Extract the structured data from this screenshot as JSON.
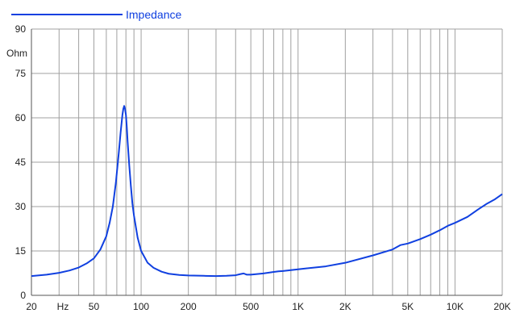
{
  "chart_data": {
    "type": "line",
    "xscale": "log",
    "xlim": [
      20,
      20000
    ],
    "ylim": [
      0,
      90
    ],
    "ylabel": "Ohm",
    "xunit_label": "Hz",
    "grid": true,
    "legend": "top-left",
    "x_ticks": [
      {
        "value": 20,
        "label": "20"
      },
      {
        "value": 50,
        "label": "50"
      },
      {
        "value": 100,
        "label": "100"
      },
      {
        "value": 200,
        "label": "200"
      },
      {
        "value": 500,
        "label": "500"
      },
      {
        "value": 1000,
        "label": "1K"
      },
      {
        "value": 2000,
        "label": "2K"
      },
      {
        "value": 5000,
        "label": "5K"
      },
      {
        "value": 10000,
        "label": "10K"
      },
      {
        "value": 20000,
        "label": "20K"
      }
    ],
    "y_ticks": [
      0,
      15,
      30,
      45,
      60,
      75,
      90
    ],
    "minor_x_gridlines": [
      30,
      40,
      60,
      70,
      80,
      90,
      300,
      400,
      600,
      700,
      800,
      900,
      3000,
      4000,
      6000,
      7000,
      8000,
      9000
    ],
    "series": [
      {
        "name": "Impedance",
        "color": "#1040e0",
        "x": [
          20,
          25,
          30,
          35,
          40,
          45,
          50,
          55,
          60,
          63,
          66,
          69,
          72,
          74,
          76,
          77,
          78,
          79,
          80,
          81,
          82,
          84,
          86,
          88,
          90,
          95,
          100,
          110,
          120,
          135,
          150,
          175,
          200,
          250,
          300,
          350,
          400,
          430,
          450,
          470,
          500,
          600,
          700,
          750,
          800,
          1000,
          1500,
          2000,
          3000,
          4000,
          4500,
          5000,
          6000,
          7000,
          8000,
          9000,
          10000,
          12000,
          14000,
          16000,
          18000,
          20000
        ],
        "values": [
          6.5,
          7.0,
          7.6,
          8.4,
          9.4,
          10.8,
          12.5,
          15.5,
          20.0,
          24.5,
          30.0,
          38.0,
          48.0,
          55.0,
          61.0,
          63.0,
          64.0,
          63.0,
          61.0,
          57.0,
          52.0,
          44.0,
          37.0,
          31.0,
          27.0,
          19.5,
          15.0,
          11.0,
          9.3,
          8.0,
          7.3,
          6.9,
          6.7,
          6.6,
          6.5,
          6.6,
          6.8,
          7.2,
          7.4,
          7.0,
          7.0,
          7.4,
          7.9,
          8.1,
          8.2,
          8.8,
          9.8,
          11.0,
          13.5,
          15.5,
          17.0,
          17.5,
          19.0,
          20.5,
          22.0,
          23.5,
          24.5,
          26.5,
          29.0,
          31.0,
          32.5,
          34.2
        ]
      }
    ]
  }
}
